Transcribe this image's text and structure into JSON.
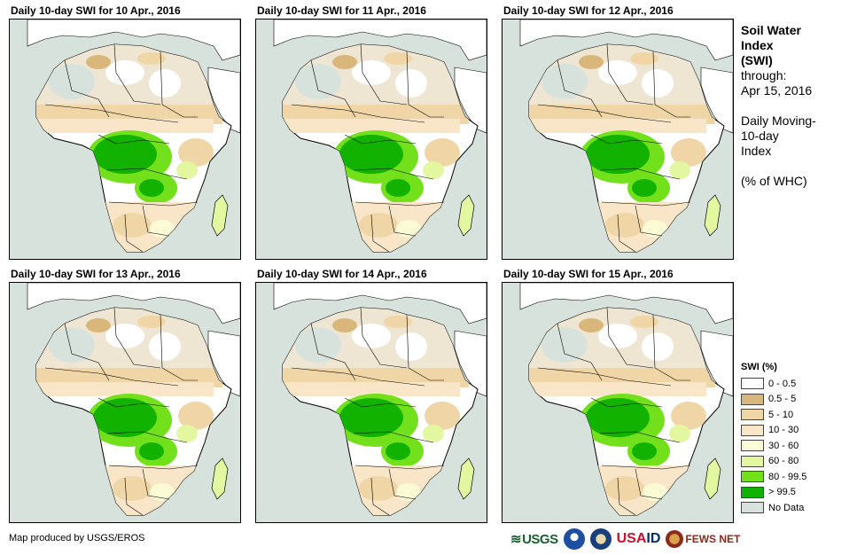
{
  "panels": [
    {
      "title": "Daily 10-day SWI for 10 Apr., 2016"
    },
    {
      "title": "Daily 10-day SWI for 11 Apr., 2016"
    },
    {
      "title": "Daily 10-day SWI for 12 Apr., 2016"
    },
    {
      "title": "Daily 10-day SWI for 13 Apr., 2016"
    },
    {
      "title": "Daily 10-day SWI for 14 Apr., 2016"
    },
    {
      "title": "Daily 10-day SWI for 15 Apr., 2016"
    }
  ],
  "side": {
    "title_lines": [
      "Soil Water",
      "Index",
      "(SWI)"
    ],
    "through_label": "through:",
    "through_date": "Apr 15, 2016",
    "desc_lines": [
      "Daily Moving-",
      "10-day",
      "Index"
    ],
    "units": "(% of WHC)"
  },
  "legend": {
    "title": "SWI (%)",
    "items": [
      {
        "label": "0 - 0.5",
        "color": "#ffffff"
      },
      {
        "label": "0.5 - 5",
        "color": "#d9b77a"
      },
      {
        "label": "5 - 10",
        "color": "#f0d6a7"
      },
      {
        "label": "10 - 30",
        "color": "#f9e6c9"
      },
      {
        "label": "30 - 60",
        "color": "#fbfbd6"
      },
      {
        "label": "60 - 80",
        "color": "#e3f7a0"
      },
      {
        "label": "80 - 99.5",
        "color": "#72e01a"
      },
      {
        "label": "> 99.5",
        "color": "#12b200"
      },
      {
        "label": "No Data",
        "color": "#d8e2dd"
      }
    ]
  },
  "credit": "Map produced by USGS/EROS",
  "logos": {
    "usgs": "USGS",
    "usaid_usa": "USA",
    "usaid_id": "ID",
    "fews": "FEWS NET"
  }
}
